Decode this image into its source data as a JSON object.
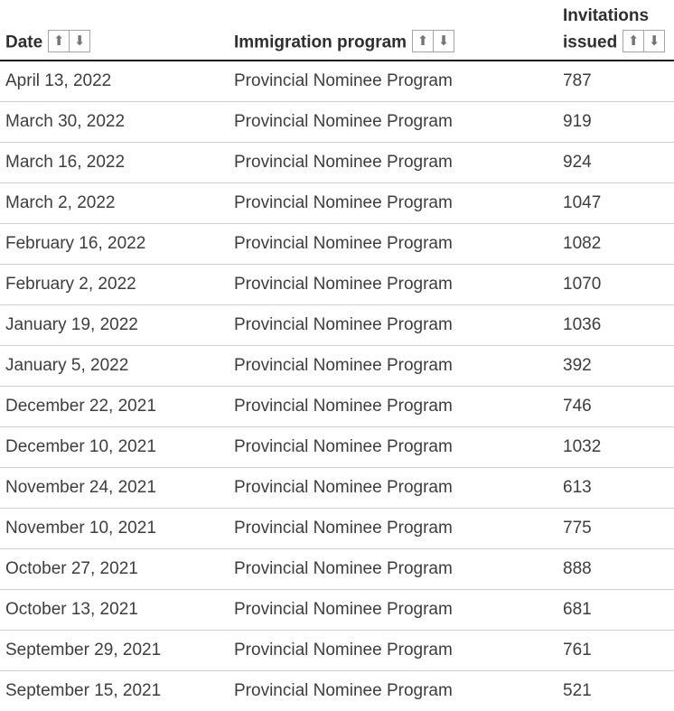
{
  "icons": {
    "sort_asc": "⬆",
    "sort_desc": "⬇"
  },
  "colors": {
    "header_text": "#2f2f2f",
    "body_text": "#3d3d3d",
    "header_rule": "#1a1a1a",
    "row_separator": "#cfcfcf",
    "sort_arrow": "#757575",
    "sort_border": "#a5a5a5"
  },
  "table": {
    "columns": [
      {
        "label": "Date"
      },
      {
        "label": "Immigration program"
      },
      {
        "label": "Invitations issued"
      }
    ],
    "rows": [
      {
        "date": "April 13, 2022",
        "program": "Provincial Nominee Program",
        "invitations": "787"
      },
      {
        "date": "March 30, 2022",
        "program": "Provincial Nominee Program",
        "invitations": "919"
      },
      {
        "date": "March 16, 2022",
        "program": "Provincial Nominee Program",
        "invitations": "924"
      },
      {
        "date": "March 2, 2022",
        "program": "Provincial Nominee Program",
        "invitations": "1047"
      },
      {
        "date": "February 16, 2022",
        "program": "Provincial Nominee Program",
        "invitations": "1082"
      },
      {
        "date": "February 2, 2022",
        "program": "Provincial Nominee Program",
        "invitations": "1070"
      },
      {
        "date": "January 19, 2022",
        "program": "Provincial Nominee Program",
        "invitations": "1036"
      },
      {
        "date": "January 5, 2022",
        "program": "Provincial Nominee Program",
        "invitations": "392"
      },
      {
        "date": "December 22, 2021",
        "program": "Provincial Nominee Program",
        "invitations": "746"
      },
      {
        "date": "December 10, 2021",
        "program": "Provincial Nominee Program",
        "invitations": "1032"
      },
      {
        "date": "November 24, 2021",
        "program": "Provincial Nominee Program",
        "invitations": "613"
      },
      {
        "date": "November 10, 2021",
        "program": "Provincial Nominee Program",
        "invitations": "775"
      },
      {
        "date": "October 27, 2021",
        "program": "Provincial Nominee Program",
        "invitations": "888"
      },
      {
        "date": "October 13, 2021",
        "program": "Provincial Nominee Program",
        "invitations": "681"
      },
      {
        "date": "September 29, 2021",
        "program": "Provincial Nominee Program",
        "invitations": "761"
      },
      {
        "date": "September 15, 2021",
        "program": "Provincial Nominee Program",
        "invitations": "521"
      }
    ]
  }
}
